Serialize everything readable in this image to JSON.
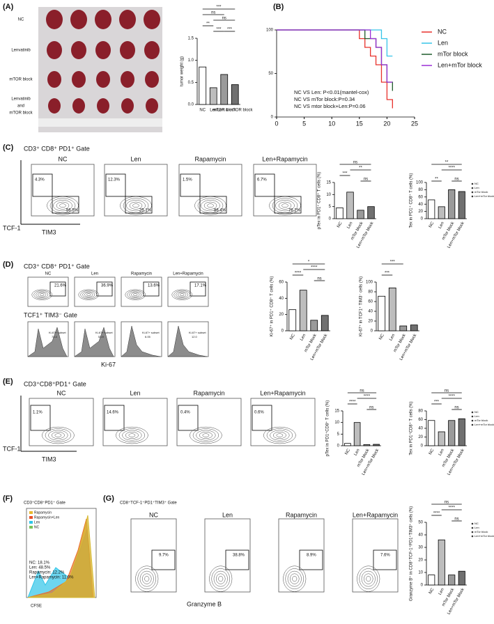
{
  "panels": {
    "A": {
      "label": "(A)",
      "rows": [
        [
          "NC"
        ],
        [
          "Lenvatinib"
        ],
        [
          "mTOR block"
        ],
        [
          "Lenvatinib",
          "and",
          "mTOR block"
        ]
      ]
    },
    "B": {
      "label": "(B)"
    },
    "C": {
      "label": "(C)",
      "gate": "CD3⁺ CD8⁺ PD1⁺ Gate",
      "y_axis": "TCF-1",
      "x_axis": "TIM3",
      "plots": [
        {
          "title": "NC",
          "pct": [
            "4.3%",
            "56.5%"
          ]
        },
        {
          "title": "Len",
          "pct": [
            "12.3%",
            "25.1%"
          ]
        },
        {
          "title": "Rapamycin",
          "pct": [
            "1.5%",
            "86.4%"
          ]
        },
        {
          "title": "Len+Rapamycin",
          "pct": [
            "6.7%",
            "76.2%"
          ]
        }
      ]
    },
    "D": {
      "label": "(D)",
      "gate": "CD3⁺ CD8⁺ PD1⁺ Gate",
      "gate2": "TCF1⁺ TIM3⁻ Gate",
      "x_axis": "Ki-67",
      "hist_label": "Ki-67+ subset",
      "plots": [
        {
          "title": "NC",
          "pct": "21.6%",
          "subset": "74.4"
        },
        {
          "title": "Len",
          "pct": "36.9%",
          "subset": "53.9"
        },
        {
          "title": "Rapamycin",
          "pct": "13.6%",
          "subset": "6.05"
        },
        {
          "title": "Len+Rapamycin",
          "pct": "17.1%",
          "subset": "12.0"
        }
      ]
    },
    "E": {
      "label": "(E)",
      "gate": "CD3⁺CD8⁺PD1⁺ Gate",
      "y_axis": "TCF-1",
      "x_axis": "TIM3",
      "plots": [
        {
          "title": "NC",
          "pct": "1.1%"
        },
        {
          "title": "Len",
          "pct": "14.6%"
        },
        {
          "title": "Rapamycin",
          "pct": "0.4%"
        },
        {
          "title": "Len+Rapamycin",
          "pct": "0.6%"
        }
      ]
    },
    "F": {
      "label": "(F)",
      "gate": "CD3⁺CD8⁺PD1⁺ Gate",
      "legend": [
        "Rapamycin",
        "Rapamycin+Len",
        "Len",
        "NC"
      ],
      "stats": [
        "NC:  18.1%",
        "Len:  48.5%",
        "Rapamycin:  12.2%",
        "Len+Rapamycin:  11.0%"
      ],
      "x_axis": "CFSE"
    },
    "G": {
      "label": "(G)",
      "gate": "CD8⁺TCF-1⁺PD1⁺TIM3⁺ Gate",
      "x_axis": "Granzyme B",
      "plots": [
        {
          "title": "NC",
          "pct": "9.7%"
        },
        {
          "title": "Len",
          "pct": "38.8%"
        },
        {
          "title": "Rapamycin",
          "pct": "8.9%"
        },
        {
          "title": "Len+Rapamycin",
          "pct": "7.6%"
        }
      ]
    }
  },
  "chart_data": [
    {
      "type": "bar",
      "y_label": "tumor weight (g)",
      "categories": [
        "NC",
        "Len",
        "mTOR block",
        "Len & mTOR block"
      ],
      "values": [
        0.85,
        0.38,
        0.68,
        0.45
      ],
      "colors": [
        "#ffffff",
        "#bdbdbd",
        "#9a9a9a",
        "#707070"
      ],
      "ylim": [
        0,
        1.5
      ],
      "yticks": [
        {
          "value": 0,
          "label": "0.0"
        },
        {
          "value": 0.5,
          "label": "0.5"
        },
        {
          "value": 1,
          "label": "1.0"
        },
        {
          "value": 1.5,
          "label": "1.5"
        }
      ],
      "annotations": [
        "***",
        "ns",
        "**",
        "ns",
        "***",
        "***"
      ]
    },
    {
      "type": "line",
      "xlim": [
        0,
        25
      ],
      "xticks": [
        0,
        5,
        10,
        15,
        20,
        25
      ],
      "ylim": [
        0,
        100
      ],
      "yticks": [
        0,
        50,
        100
      ],
      "annotations": [
        "NC VS Len: P<0.01(mantel-cox)",
        "NC VS mTor block:P=0.34",
        "NC VS mtor block+Len:P=0.06"
      ],
      "series": [
        {
          "name": "NC",
          "color": "#e8302a",
          "x": [
            0,
            15,
            15,
            16,
            16,
            17,
            17,
            18,
            18,
            19,
            19,
            20,
            20,
            21,
            21
          ],
          "values": [
            100,
            100,
            90,
            90,
            80,
            80,
            70,
            70,
            60,
            60,
            40,
            40,
            20,
            20,
            10
          ]
        },
        {
          "name": "Len",
          "color": "#35c4e8",
          "x": [
            0,
            19,
            19,
            20,
            20,
            21
          ],
          "values": [
            100,
            100,
            90,
            90,
            70,
            70
          ]
        },
        {
          "name": "mTor block",
          "color": "#1e5a2a",
          "x": [
            0,
            16,
            16,
            18,
            18,
            19,
            19,
            20,
            20,
            21,
            21
          ],
          "values": [
            100,
            100,
            90,
            90,
            80,
            80,
            60,
            60,
            40,
            40,
            30
          ]
        },
        {
          "name": "Len+mTor block",
          "color": "#9b2fd6",
          "x": [
            0,
            17,
            17,
            18,
            18,
            19,
            19,
            20,
            20,
            21
          ],
          "values": [
            100,
            100,
            90,
            90,
            80,
            80,
            60,
            60,
            40,
            40
          ]
        }
      ]
    },
    {
      "type": "bar",
      "y_label": "pTex in PD1⁺ CD8⁺ T cells (%)",
      "categories": [
        "NC",
        "Len",
        "mTor block",
        "Len+mTor block"
      ],
      "values": [
        4.5,
        11,
        3.5,
        5
      ],
      "colors": [
        "#ffffff",
        "#bdbdbd",
        "#9a9a9a",
        "#707070"
      ],
      "ylim": [
        0,
        15
      ],
      "yticks": [
        0,
        5,
        10,
        15
      ],
      "annotations": [
        "ns",
        "***",
        "**",
        "ns"
      ]
    },
    {
      "type": "bar",
      "y_label": "Tex in PD1⁺ CD8⁺ T cells (%)",
      "categories": [
        "NC",
        "Len",
        "mTor block",
        "Len+mTor block"
      ],
      "values": [
        52,
        33,
        80,
        75
      ],
      "colors": [
        "#ffffff",
        "#bdbdbd",
        "#9a9a9a",
        "#707070"
      ],
      "ylim": [
        0,
        100
      ],
      "yticks": [
        0,
        20,
        40,
        60,
        80,
        100
      ],
      "annotations": [
        "**",
        "****",
        "**",
        "ns"
      ]
    },
    {
      "type": "bar",
      "y_label": "Ki-67⁺ in PD1⁺ CD8⁺ T cells (%)",
      "categories": [
        "NC",
        "Len",
        "mTor block",
        "Len+mTor block"
      ],
      "values": [
        26,
        50,
        13,
        19
      ],
      "colors": [
        "#ffffff",
        "#bdbdbd",
        "#9a9a9a",
        "#707070"
      ],
      "ylim": [
        0,
        60
      ],
      "yticks": [
        0,
        20,
        40,
        60
      ],
      "annotations": [
        "*",
        "****",
        "****",
        "ns"
      ]
    },
    {
      "type": "bar",
      "y_label": "Ki-67⁺ in TCF1⁺ TIM3⁻ cells (%)",
      "categories": [
        "NC",
        "Len",
        "mTor block",
        "Len+mTor block"
      ],
      "values": [
        71,
        88,
        10,
        12
      ],
      "colors": [
        "#ffffff",
        "#bdbdbd",
        "#9a9a9a",
        "#707070"
      ],
      "ylim": [
        0,
        100
      ],
      "yticks": [
        0,
        20,
        40,
        60,
        80,
        100
      ],
      "annotations": [
        "***",
        "***"
      ]
    },
    {
      "type": "bar",
      "y_label": "pTex in PD1⁺CD8⁺ T cells (%)",
      "categories": [
        "NC",
        "Len",
        "mTor block",
        "Len+mTor block"
      ],
      "values": [
        1,
        10,
        0.5,
        0.6
      ],
      "colors": [
        "#ffffff",
        "#bdbdbd",
        "#9a9a9a",
        "#707070"
      ],
      "ylim": [
        0,
        15
      ],
      "yticks": [
        0,
        5,
        10,
        15
      ],
      "annotations": [
        "ns",
        "****",
        "****",
        "ns"
      ]
    },
    {
      "type": "bar",
      "y_label": "Tex in PD1⁺CD8⁺ T cells (%)",
      "categories": [
        "NC",
        "Len",
        "mTor block",
        "Len+mTor block"
      ],
      "values": [
        58,
        32,
        58,
        62
      ],
      "colors": [
        "#ffffff",
        "#bdbdbd",
        "#9a9a9a",
        "#707070"
      ],
      "ylim": [
        0,
        80
      ],
      "yticks": [
        0,
        20,
        40,
        60,
        80
      ],
      "annotations": [
        "ns",
        "***",
        "****",
        "ns"
      ]
    },
    {
      "type": "bar",
      "y_label": "Granzyme B⁺ in CD8⁺TCF-1⁺PD1⁺TIM3⁺ cells (%)",
      "categories": [
        "NC",
        "Len",
        "mTor block",
        "Len+mTor block"
      ],
      "values": [
        8,
        36,
        8,
        11
      ],
      "colors": [
        "#ffffff",
        "#bdbdbd",
        "#9a9a9a",
        "#707070"
      ],
      "ylim": [
        0,
        50
      ],
      "yticks": [
        0,
        10,
        20,
        30,
        40,
        50
      ],
      "annotations": [
        "ns",
        "****",
        "****",
        "ns"
      ]
    }
  ]
}
